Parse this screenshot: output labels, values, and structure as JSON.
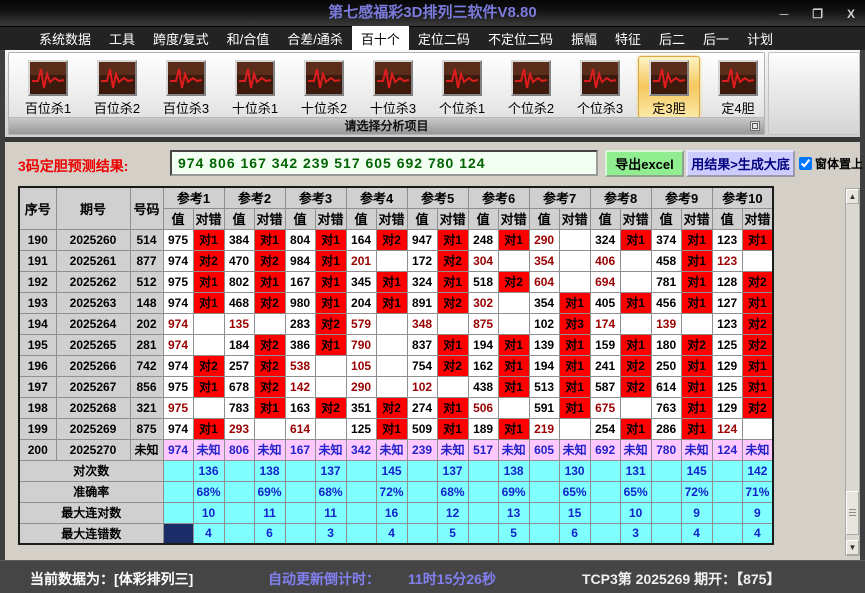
{
  "window": {
    "title": "第七感福彩3D排列三软件V8.80",
    "controls": {
      "minimize": "─",
      "restore": "❐",
      "close": "X"
    }
  },
  "menu": {
    "items": [
      "系统数据",
      "工具",
      "跨度/复式",
      "和/合值",
      "合差/通杀",
      "百十个",
      "定位二码",
      "不定位二码",
      "振幅",
      "特征",
      "后二",
      "后一",
      "计划"
    ],
    "active_index": 5
  },
  "ribbon": {
    "buttons": [
      "百位杀1",
      "百位杀2",
      "百位杀3",
      "十位杀1",
      "十位杀2",
      "十位杀3",
      "个位杀1",
      "个位杀2",
      "个位杀3",
      "定3胆",
      "定4胆"
    ],
    "active_index": 9,
    "group_label": "请选择分析项目"
  },
  "prediction": {
    "label": "3码定胆预测结果:",
    "value": "974 806 167 342 239 517 605 692 780 124",
    "export_button": "导出excel",
    "generate_button": "用结果>生成大底",
    "topmost_label": "窗体置上",
    "topmost_checked": true
  },
  "table": {
    "headers": {
      "index": "序号",
      "period": "期号",
      "number": "号码",
      "ref_prefix": "参考",
      "value": "值",
      "result": "对错"
    },
    "ref_count": 10,
    "rows": [
      {
        "i": "190",
        "p": "2025260",
        "n": "514",
        "c": [
          [
            "975",
            "对1"
          ],
          [
            "384",
            "对1"
          ],
          [
            "804",
            "对1"
          ],
          [
            "164",
            "对2"
          ],
          [
            "947",
            "对1"
          ],
          [
            "248",
            "对1"
          ],
          [
            "290",
            ""
          ],
          [
            "324",
            "对1"
          ],
          [
            "374",
            "对1"
          ],
          [
            "123",
            "对1"
          ]
        ]
      },
      {
        "i": "191",
        "p": "2025261",
        "n": "877",
        "c": [
          [
            "974",
            "对2"
          ],
          [
            "470",
            "对2"
          ],
          [
            "984",
            "对1"
          ],
          [
            "201",
            ""
          ],
          [
            "172",
            "对2"
          ],
          [
            "304",
            ""
          ],
          [
            "354",
            ""
          ],
          [
            "406",
            ""
          ],
          [
            "458",
            "对1"
          ],
          [
            "123",
            ""
          ]
        ]
      },
      {
        "i": "192",
        "p": "2025262",
        "n": "512",
        "c": [
          [
            "975",
            "对1"
          ],
          [
            "802",
            "对1"
          ],
          [
            "167",
            "对1"
          ],
          [
            "345",
            "对1"
          ],
          [
            "324",
            "对1"
          ],
          [
            "518",
            "对2"
          ],
          [
            "604",
            ""
          ],
          [
            "694",
            ""
          ],
          [
            "781",
            "对1"
          ],
          [
            "128",
            "对2"
          ]
        ]
      },
      {
        "i": "193",
        "p": "2025263",
        "n": "148",
        "c": [
          [
            "974",
            "对1"
          ],
          [
            "468",
            "对2"
          ],
          [
            "980",
            "对1"
          ],
          [
            "204",
            "对1"
          ],
          [
            "891",
            "对2"
          ],
          [
            "302",
            ""
          ],
          [
            "354",
            "对1"
          ],
          [
            "405",
            "对1"
          ],
          [
            "456",
            "对1"
          ],
          [
            "127",
            "对1"
          ]
        ]
      },
      {
        "i": "194",
        "p": "2025264",
        "n": "202",
        "c": [
          [
            "974",
            ""
          ],
          [
            "135",
            ""
          ],
          [
            "283",
            "对2"
          ],
          [
            "579",
            ""
          ],
          [
            "348",
            ""
          ],
          [
            "875",
            ""
          ],
          [
            "102",
            "对3"
          ],
          [
            "174",
            ""
          ],
          [
            "139",
            ""
          ],
          [
            "123",
            "对2"
          ]
        ]
      },
      {
        "i": "195",
        "p": "2025265",
        "n": "281",
        "c": [
          [
            "974",
            ""
          ],
          [
            "184",
            "对2"
          ],
          [
            "386",
            "对1"
          ],
          [
            "790",
            ""
          ],
          [
            "837",
            "对1"
          ],
          [
            "194",
            "对1"
          ],
          [
            "139",
            "对1"
          ],
          [
            "159",
            "对1"
          ],
          [
            "180",
            "对2"
          ],
          [
            "125",
            "对2"
          ]
        ]
      },
      {
        "i": "196",
        "p": "2025266",
        "n": "742",
        "c": [
          [
            "974",
            "对2"
          ],
          [
            "257",
            "对2"
          ],
          [
            "538",
            ""
          ],
          [
            "105",
            ""
          ],
          [
            "754",
            "对2"
          ],
          [
            "162",
            "对1"
          ],
          [
            "194",
            "对1"
          ],
          [
            "241",
            "对2"
          ],
          [
            "250",
            "对1"
          ],
          [
            "129",
            "对1"
          ]
        ]
      },
      {
        "i": "197",
        "p": "2025267",
        "n": "856",
        "c": [
          [
            "975",
            "对1"
          ],
          [
            "678",
            "对2"
          ],
          [
            "142",
            ""
          ],
          [
            "290",
            ""
          ],
          [
            "102",
            ""
          ],
          [
            "438",
            "对1"
          ],
          [
            "513",
            "对1"
          ],
          [
            "587",
            "对2"
          ],
          [
            "614",
            "对1"
          ],
          [
            "125",
            "对1"
          ]
        ]
      },
      {
        "i": "198",
        "p": "2025268",
        "n": "321",
        "c": [
          [
            "975",
            ""
          ],
          [
            "783",
            "对1"
          ],
          [
            "163",
            "对2"
          ],
          [
            "351",
            "对2"
          ],
          [
            "274",
            "对1"
          ],
          [
            "506",
            ""
          ],
          [
            "591",
            "对1"
          ],
          [
            "675",
            ""
          ],
          [
            "763",
            "对1"
          ],
          [
            "129",
            "对2"
          ]
        ]
      },
      {
        "i": "199",
        "p": "2025269",
        "n": "875",
        "c": [
          [
            "974",
            "对1"
          ],
          [
            "293",
            ""
          ],
          [
            "614",
            ""
          ],
          [
            "125",
            "对1"
          ],
          [
            "509",
            "对1"
          ],
          [
            "189",
            "对1"
          ],
          [
            "219",
            ""
          ],
          [
            "254",
            "对1"
          ],
          [
            "286",
            "对1"
          ],
          [
            "124",
            ""
          ]
        ]
      },
      {
        "i": "200",
        "p": "2025270",
        "n": "未知",
        "unknown": true,
        "c": [
          [
            "974",
            "未知"
          ],
          [
            "806",
            "未知"
          ],
          [
            "167",
            "未知"
          ],
          [
            "342",
            "未知"
          ],
          [
            "239",
            "未知"
          ],
          [
            "517",
            "未知"
          ],
          [
            "605",
            "未知"
          ],
          [
            "692",
            "未知"
          ],
          [
            "780",
            "未知"
          ],
          [
            "124",
            "未知"
          ]
        ]
      }
    ],
    "summary": [
      {
        "label": "对次数",
        "values": [
          "136",
          "138",
          "137",
          "145",
          "137",
          "138",
          "130",
          "131",
          "145",
          "142"
        ]
      },
      {
        "label": "准确率",
        "values": [
          "68%",
          "69%",
          "68%",
          "72%",
          "68%",
          "69%",
          "65%",
          "65%",
          "72%",
          "71%"
        ]
      },
      {
        "label": "最大连对数",
        "values": [
          "10",
          "11",
          "11",
          "16",
          "12",
          "13",
          "15",
          "10",
          "9",
          "9"
        ]
      },
      {
        "label": "最大连错数",
        "values": [
          "4",
          "6",
          "3",
          "4",
          "5",
          "5",
          "6",
          "3",
          "4",
          "4"
        ],
        "selected_first": true
      }
    ]
  },
  "status_bar": {
    "current_data": "当前数据为：[体彩排列三]",
    "countdown_label": "自动更新倒计时：",
    "countdown_value": "11时15分26秒",
    "draw_info": "TCP3第 2025269 期开：【875】"
  },
  "colors": {
    "title_text": "#7b7bde",
    "hit_bg": "#ff0000",
    "miss_text": "#990000",
    "unknown_bg": "#ffc8fe",
    "unknown_text": "#2222cc",
    "summary_bg": "#80ffff",
    "summary_text": "#1122cc",
    "selected_cell": "#1b2d68",
    "export_btn": "#90ee90",
    "generate_btn": "#ccccff",
    "pred_text": "#006400",
    "countdown_text": "#8080f0"
  }
}
